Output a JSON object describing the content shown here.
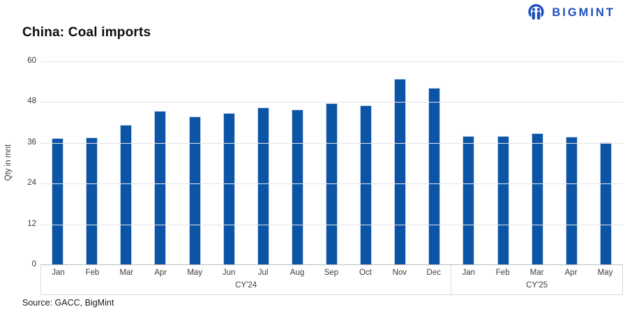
{
  "header": {
    "title": "China: Coal imports",
    "brand": "BIGMINT"
  },
  "footer": {
    "source": "Source: GACC, BigMint"
  },
  "chart_data": {
    "type": "bar",
    "title": "China: Coal imports",
    "xlabel": "",
    "ylabel": "Qty in mnt",
    "ylim": [
      0,
      60
    ],
    "yticks": [
      0,
      12,
      24,
      36,
      48,
      60
    ],
    "grid": true,
    "legend": "none",
    "bar_color": "#0b54a6",
    "groups": [
      {
        "label": "CY'24",
        "categories": [
          "Jan",
          "Feb",
          "Mar",
          "Apr",
          "May",
          "Jun",
          "Jul",
          "Aug",
          "Sep",
          "Oct",
          "Nov",
          "Dec"
        ],
        "values": [
          37.2,
          37.4,
          41.1,
          45.2,
          43.5,
          44.5,
          46.2,
          45.6,
          47.5,
          46.9,
          54.6,
          52.0
        ]
      },
      {
        "label": "CY'25",
        "categories": [
          "Jan",
          "Feb",
          "Mar",
          "Apr",
          "May"
        ],
        "values": [
          37.9,
          37.9,
          38.6,
          37.7,
          36.0
        ]
      }
    ]
  }
}
